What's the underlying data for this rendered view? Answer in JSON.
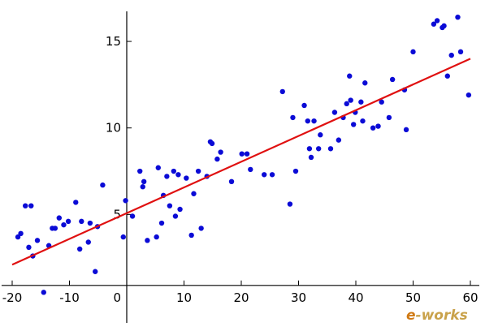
{
  "chart_data": {
    "type": "scatter",
    "title": "",
    "xlabel": "",
    "ylabel": "",
    "xlim": [
      -21,
      61
    ],
    "ylim": [
      0.5,
      16.8
    ],
    "grid": false,
    "x_ticks": [
      -20,
      -10,
      10,
      20,
      30,
      40,
      50,
      60
    ],
    "y_ticks": [
      5,
      10,
      15
    ],
    "x_tick_labels": [
      "-20",
      "-10",
      "10",
      "20",
      "30",
      "40",
      "50",
      "60"
    ],
    "y_tick_labels": [
      "5",
      "10",
      "15"
    ],
    "origin_label": "0",
    "colors": {
      "points": "#0b0bd6",
      "fit_line": "#e01010",
      "axes": "#000000"
    },
    "fit_line": {
      "x": [
        -20,
        60
      ],
      "y": [
        2.1,
        14.0
      ]
    },
    "points": [
      [
        -19,
        3.7
      ],
      [
        -18.5,
        3.9
      ],
      [
        -17.7,
        5.5
      ],
      [
        -17.1,
        3.1
      ],
      [
        -16.7,
        5.5
      ],
      [
        -16.4,
        2.6
      ],
      [
        -15.6,
        3.5
      ],
      [
        -14.5,
        0.5
      ],
      [
        -13.6,
        3.2
      ],
      [
        -13.0,
        4.2
      ],
      [
        -12.5,
        4.2
      ],
      [
        -11.8,
        4.8
      ],
      [
        -10.2,
        4.6
      ],
      [
        -8.9,
        5.7
      ],
      [
        -8.2,
        3.0
      ],
      [
        -7.9,
        4.6
      ],
      [
        -6.7,
        3.4
      ],
      [
        -6.4,
        4.5
      ],
      [
        -5.5,
        1.7
      ],
      [
        -5.1,
        4.3
      ],
      [
        -4.2,
        6.7
      ],
      [
        -0.6,
        3.7
      ],
      [
        -0.2,
        5.8
      ],
      [
        1.0,
        4.9
      ],
      [
        2.3,
        7.5
      ],
      [
        2.8,
        6.6
      ],
      [
        3.6,
        3.5
      ],
      [
        5.2,
        3.7
      ],
      [
        5.5,
        7.7
      ],
      [
        6.1,
        4.5
      ],
      [
        6.4,
        6.1
      ],
      [
        7.0,
        7.2
      ],
      [
        7.5,
        5.5
      ],
      [
        8.2,
        7.5
      ],
      [
        8.5,
        4.9
      ],
      [
        9.0,
        7.3
      ],
      [
        9.3,
        5.3
      ],
      [
        10.4,
        7.1
      ],
      [
        11.3,
        3.8
      ],
      [
        11.7,
        6.2
      ],
      [
        12.5,
        7.5
      ],
      [
        13.0,
        4.2
      ],
      [
        14.0,
        7.2
      ],
      [
        14.6,
        9.2
      ],
      [
        14.9,
        9.1
      ],
      [
        15.8,
        8.2
      ],
      [
        16.4,
        8.6
      ],
      [
        20.1,
        8.5
      ],
      [
        21.0,
        8.5
      ],
      [
        21.6,
        7.6
      ],
      [
        24.0,
        7.3
      ],
      [
        25.4,
        7.3
      ],
      [
        27.2,
        12.1
      ],
      [
        28.5,
        5.6
      ],
      [
        29.0,
        10.6
      ],
      [
        29.5,
        7.5
      ],
      [
        31.0,
        11.3
      ],
      [
        31.6,
        10.4
      ],
      [
        31.9,
        8.8
      ],
      [
        32.2,
        8.3
      ],
      [
        32.7,
        10.4
      ],
      [
        33.5,
        8.8
      ],
      [
        35.6,
        8.8
      ],
      [
        36.3,
        10.9
      ],
      [
        37.0,
        9.3
      ],
      [
        37.8,
        10.6
      ],
      [
        38.4,
        11.4
      ],
      [
        38.9,
        13.0
      ],
      [
        39.1,
        11.6
      ],
      [
        39.6,
        10.2
      ],
      [
        39.9,
        10.9
      ],
      [
        40.9,
        11.5
      ],
      [
        41.2,
        10.4
      ],
      [
        41.6,
        12.6
      ],
      [
        43.0,
        10.0
      ],
      [
        43.9,
        10.1
      ],
      [
        44.5,
        11.5
      ],
      [
        46.4,
        12.8
      ],
      [
        48.5,
        12.2
      ],
      [
        48.8,
        9.9
      ],
      [
        50.0,
        14.4
      ],
      [
        53.6,
        16.0
      ],
      [
        54.2,
        16.2
      ],
      [
        55.1,
        15.8
      ],
      [
        56.0,
        13.0
      ],
      [
        56.7,
        14.2
      ],
      [
        57.8,
        16.4
      ],
      [
        58.3,
        14.4
      ],
      [
        59.7,
        11.9
      ],
      [
        55.4,
        15.9
      ],
      [
        -11.0,
        4.4
      ],
      [
        3.0,
        6.9
      ],
      [
        18.3,
        6.9
      ],
      [
        33.8,
        9.6
      ],
      [
        45.8,
        10.6
      ]
    ]
  },
  "watermark": {
    "prefix": "e",
    "rest": "-works",
    "color_prefix": "#d07a14",
    "color_rest": "#c9a24b"
  }
}
